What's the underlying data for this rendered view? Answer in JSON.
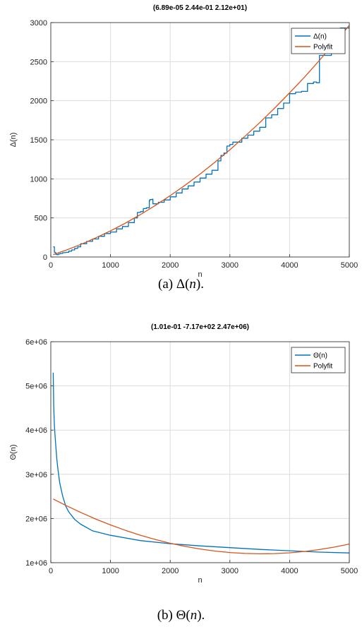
{
  "chart_data": [
    {
      "type": "line",
      "title": "(6.89e-05 2.44e-01 2.12e+01)",
      "xlabel": "n",
      "ylabel": "Δ(n)",
      "xlim": [
        0,
        5000
      ],
      "ylim": [
        0,
        3000
      ],
      "xticks": [
        0,
        1000,
        2000,
        3000,
        4000,
        5000
      ],
      "yticks": [
        0,
        500,
        1000,
        1500,
        2000,
        2500,
        3000
      ],
      "ytick_labels": [
        "0",
        "500",
        "1000",
        "1500",
        "2000",
        "2500",
        "3000"
      ],
      "grid": true,
      "legend_position": "top-right",
      "caption": {
        "prefix": "(a) ",
        "symbol": "Δ",
        "var": "n",
        "suffix": "."
      },
      "series": [
        {
          "name": "Δ(n)",
          "color": "#0072bd",
          "style": "step",
          "x": [
            40,
            60,
            80,
            100,
            130,
            160,
            200,
            250,
            300,
            350,
            400,
            450,
            500,
            600,
            700,
            800,
            900,
            1000,
            1100,
            1200,
            1300,
            1400,
            1450,
            1500,
            1550,
            1600,
            1650,
            1660,
            1700,
            1710,
            1800,
            1900,
            2000,
            2100,
            2200,
            2300,
            2400,
            2500,
            2600,
            2700,
            2800,
            2850,
            2900,
            2950,
            3000,
            3050,
            3100,
            3200,
            3300,
            3400,
            3500,
            3600,
            3700,
            3800,
            3900,
            4000,
            4100,
            4200,
            4300,
            4400,
            4450,
            4500,
            4600,
            4700,
            4800,
            4850,
            4950,
            5000
          ],
          "y": [
            130,
            60,
            35,
            30,
            40,
            45,
            55,
            60,
            75,
            90,
            110,
            130,
            170,
            200,
            230,
            265,
            300,
            320,
            360,
            390,
            440,
            500,
            570,
            580,
            620,
            630,
            720,
            735,
            740,
            680,
            700,
            730,
            770,
            820,
            870,
            910,
            960,
            1010,
            1060,
            1110,
            1230,
            1300,
            1330,
            1420,
            1440,
            1470,
            1470,
            1520,
            1560,
            1610,
            1660,
            1780,
            1820,
            1900,
            1970,
            2090,
            2110,
            2120,
            2220,
            2240,
            2230,
            2580,
            2580,
            2680,
            2870,
            2930,
            2930,
            2950
          ]
        },
        {
          "name": "Polyfit",
          "color": "#d95319",
          "style": "line",
          "fit": [
            6.89e-05,
            0.244,
            21.2
          ],
          "x": [
            40,
            250,
            500,
            750,
            1000,
            1250,
            1500,
            1750,
            2000,
            2250,
            2500,
            2750,
            3000,
            3250,
            3500,
            3750,
            4000,
            4250,
            4500,
            4750,
            5000
          ],
          "y": [
            31,
            86,
            160,
            243,
            334,
            434,
            542,
            659,
            785,
            919,
            1062,
            1214,
            1373,
            1543,
            1720,
            1907,
            2101,
            2302,
            2517,
            2740,
            2965
          ]
        }
      ]
    },
    {
      "type": "line",
      "title": "(1.01e-01 -7.17e+02 2.47e+06)",
      "xlabel": "n",
      "ylabel": "Θ(n)",
      "xlim": [
        0,
        5000
      ],
      "ylim": [
        1000000,
        6000000
      ],
      "xticks": [
        0,
        1000,
        2000,
        3000,
        4000,
        5000
      ],
      "yticks": [
        1000000,
        2000000,
        3000000,
        4000000,
        5000000,
        6000000
      ],
      "ytick_labels": [
        "1e+06",
        "2e+06",
        "3e+06",
        "4e+06",
        "5e+06",
        "6e+06"
      ],
      "grid": true,
      "legend_position": "top-right",
      "caption": {
        "prefix": "(b) ",
        "symbol": "Θ",
        "var": "n",
        "suffix": "."
      },
      "series": [
        {
          "name": "Θ(n)",
          "color": "#0072bd",
          "style": "line",
          "x": [
            40,
            50,
            60,
            70,
            80,
            100,
            120,
            150,
            200,
            250,
            300,
            400,
            500,
            700,
            1000,
            1500,
            2000,
            2500,
            3000,
            3500,
            4000,
            4500,
            5000
          ],
          "y": [
            5300000,
            4500000,
            4100000,
            3900000,
            3700000,
            3350000,
            3100000,
            2800000,
            2500000,
            2280000,
            2150000,
            1980000,
            1870000,
            1720000,
            1620000,
            1500000,
            1430000,
            1380000,
            1340000,
            1300000,
            1270000,
            1240000,
            1220000
          ]
        },
        {
          "name": "Polyfit",
          "color": "#d95319",
          "style": "line",
          "fit": [
            0.101,
            -717,
            2470000
          ],
          "x": [
            40,
            250,
            500,
            750,
            1000,
            1250,
            1500,
            1750,
            2000,
            2250,
            2500,
            2750,
            3000,
            3250,
            3500,
            3750,
            4000,
            4250,
            4500,
            4750,
            5000
          ],
          "y": [
            2441000,
            2297000,
            2137000,
            1989000,
            1854000,
            1731000,
            1622000,
            1525000,
            1440000,
            1369000,
            1310000,
            1264000,
            1230000,
            1210000,
            1202000,
            1206000,
            1224000,
            1254000,
            1297000,
            1353000,
            1422000
          ]
        }
      ]
    }
  ]
}
